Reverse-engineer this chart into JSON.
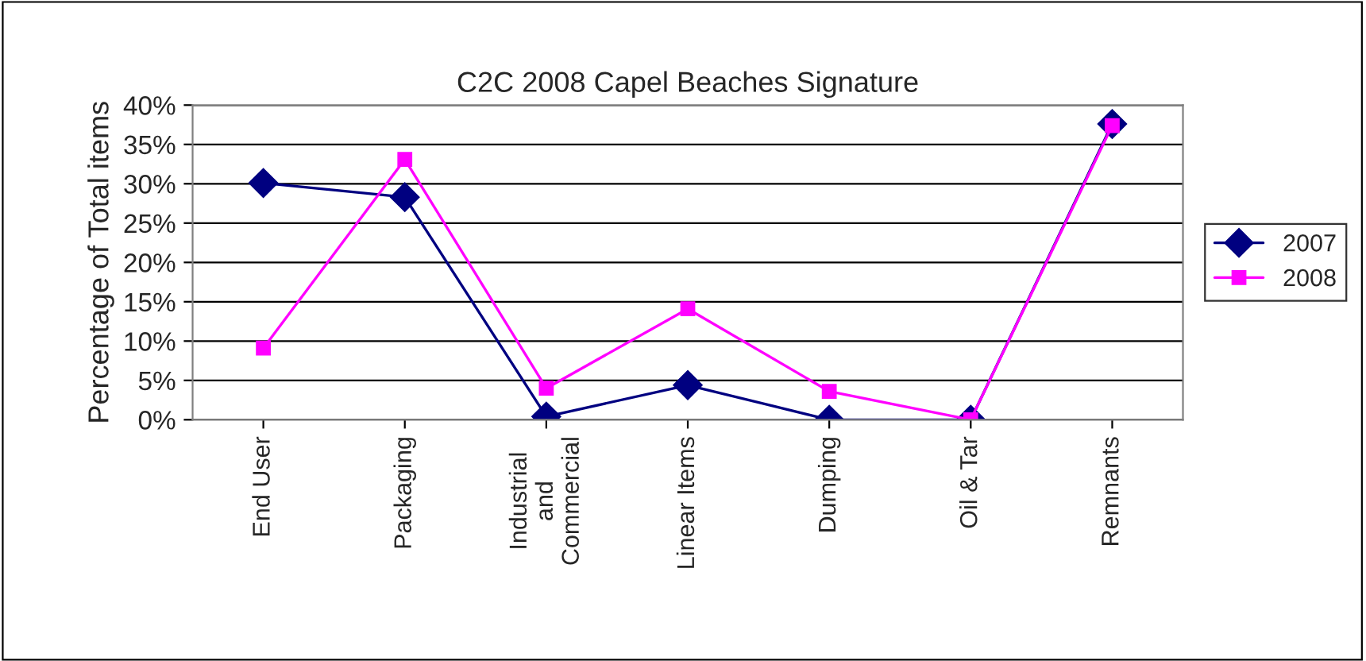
{
  "chart_data": {
    "type": "line",
    "title": "C2C 2008 Capel Beaches Signature",
    "ylabel": "Percentage of Total items",
    "categories": [
      "End User",
      "Packaging",
      "Industrial\nand\nCommercial",
      "Linear Items",
      "Dumping",
      "Oil & Tar",
      "Remnants"
    ],
    "series": [
      {
        "name": "2007",
        "color": "#000080",
        "marker": "diamond",
        "values": [
          30.1,
          28.3,
          0.4,
          4.4,
          0,
          0,
          37.6
        ]
      },
      {
        "name": "2008",
        "color": "#ff00ff",
        "marker": "square",
        "values": [
          9.1,
          33.1,
          4.0,
          14.1,
          3.6,
          0,
          37.4
        ]
      }
    ],
    "ylim": [
      0,
      40
    ],
    "yticks": [
      {
        "value": 0,
        "label": "0%"
      },
      {
        "value": 5,
        "label": "5%"
      },
      {
        "value": 10,
        "label": "10%"
      },
      {
        "value": 15,
        "label": "15%"
      },
      {
        "value": 20,
        "label": "20%"
      },
      {
        "value": 25,
        "label": "25%"
      },
      {
        "value": 30,
        "label": "30%"
      },
      {
        "value": 35,
        "label": "35%"
      },
      {
        "value": 40,
        "label": "40%"
      }
    ],
    "grid": "y",
    "legend": "right"
  }
}
